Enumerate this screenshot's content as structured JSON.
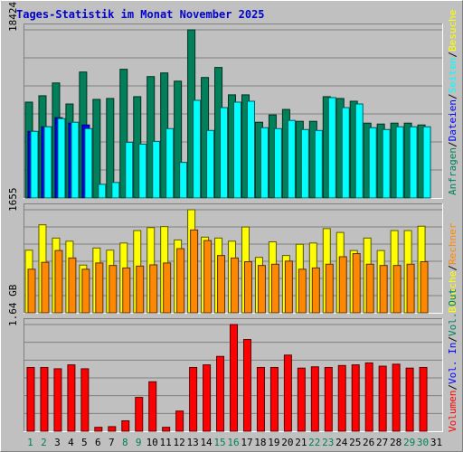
{
  "chart_data": [
    {
      "type": "bar",
      "title": "Tages-Statistik im Monat November 2025",
      "ytick": "18424",
      "categories": [
        "1",
        "2",
        "3",
        "4",
        "5",
        "6",
        "7",
        "8",
        "9",
        "10",
        "11",
        "12",
        "13",
        "14",
        "15",
        "16",
        "17",
        "18",
        "19",
        "20",
        "21",
        "22",
        "23",
        "24",
        "25",
        "26",
        "27",
        "28",
        "29",
        "30",
        "31"
      ],
      "series": [
        {
          "name": "Anfragen",
          "values": [
            10500,
            11200,
            12600,
            10300,
            13800,
            10800,
            10900,
            14100,
            11100,
            13300,
            13700,
            12800,
            18424,
            13200,
            14300,
            11300,
            11300,
            8300,
            9100,
            9700,
            8400,
            8400,
            11100,
            10900,
            10600,
            8200,
            8100,
            8200,
            8200,
            8000,
            0
          ]
        },
        {
          "name": "Dateien",
          "values": [
            7300,
            7800,
            8800,
            8200,
            8000,
            0,
            0,
            0,
            0,
            0,
            0,
            0,
            0,
            0,
            0,
            0,
            0,
            0,
            0,
            0,
            0,
            0,
            0,
            0,
            0,
            0,
            0,
            0,
            0,
            0,
            0
          ]
        },
        {
          "name": "Seiten",
          "values": [
            7300,
            7800,
            8700,
            8300,
            7600,
            1500,
            1700,
            6100,
            5900,
            6200,
            7600,
            3900,
            10700,
            7400,
            9900,
            10500,
            10600,
            7700,
            7600,
            8500,
            7500,
            7400,
            11000,
            9900,
            10300,
            7700,
            7500,
            7800,
            7800,
            7800,
            0
          ]
        },
        {
          "name": "Besuche",
          "values": [
            0,
            0,
            0,
            0,
            0,
            0,
            0,
            0,
            0,
            0,
            0,
            0,
            0,
            0,
            0,
            0,
            0,
            0,
            0,
            0,
            0,
            0,
            0,
            0,
            0,
            0,
            0,
            0,
            0,
            0,
            0
          ]
        }
      ],
      "legend": [
        "Anfragen",
        "/",
        "Dateien",
        "/",
        "Seiten",
        "/",
        "Besuche"
      ],
      "colors": {
        "Anfragen": "#00805a",
        "Dateien": "#0000ff",
        "Seiten": "#00ffff",
        "Besuche": "#ffff00"
      }
    },
    {
      "type": "bar",
      "ytick": "1655",
      "categories": [
        "1",
        "2",
        "3",
        "4",
        "5",
        "6",
        "7",
        "8",
        "9",
        "10",
        "11",
        "12",
        "13",
        "14",
        "15",
        "16",
        "17",
        "18",
        "19",
        "20",
        "21",
        "22",
        "23",
        "24",
        "25",
        "26",
        "27",
        "28",
        "29",
        "30",
        "31"
      ],
      "series": [
        {
          "name": "Besuche",
          "values": [
            1005,
            1413,
            1200,
            1150,
            766,
            1040,
            1006,
            1120,
            1320,
            1368,
            1384,
            1170,
            1655,
            1215,
            1200,
            1150,
            1378,
            890,
            1140,
            920,
            1100,
            1120,
            1352,
            1290,
            1000,
            1200,
            1000,
            1320,
            1320,
            1390,
            0
          ]
        },
        {
          "name": "Rechner",
          "values": [
            700,
            810,
            1000,
            880,
            700,
            800,
            760,
            720,
            750,
            770,
            800,
            1030,
            1330,
            1160,
            920,
            880,
            820,
            760,
            780,
            830,
            700,
            720,
            780,
            900,
            950,
            780,
            760,
            760,
            780,
            820,
            0
          ]
        }
      ],
      "legend": [
        "Besuche",
        "/",
        "Rechner"
      ],
      "colors": {
        "Besuche": "#ffff00",
        "Rechner": "#ff8800"
      }
    },
    {
      "type": "bar",
      "ytick": "1.64 GB",
      "categories": [
        "1",
        "2",
        "3",
        "4",
        "5",
        "6",
        "7",
        "8",
        "9",
        "10",
        "11",
        "12",
        "13",
        "14",
        "15",
        "16",
        "17",
        "18",
        "19",
        "20",
        "21",
        "22",
        "23",
        "24",
        "25",
        "26",
        "27",
        "28",
        "29",
        "30",
        "31"
      ],
      "series": [
        {
          "name": "Volumen",
          "values": [
            0.98,
            0.98,
            0.96,
            1.02,
            0.96,
            0.06,
            0.07,
            0.16,
            0.52,
            0.76,
            0.06,
            0.31,
            0.98,
            1.02,
            1.15,
            1.64,
            1.41,
            0.98,
            0.98,
            1.17,
            0.97,
            0.99,
            0.98,
            1.01,
            1.02,
            1.05,
            1.0,
            1.03,
            0.97,
            0.98,
            0
          ]
        }
      ],
      "legend": [
        "Volumen",
        "/",
        "Vol. In",
        "/",
        "Vol. Out"
      ],
      "colors": {
        "Volumen": "#ff0000",
        "Vol. In": "#0000ff",
        "Vol. Out": "#00805a"
      }
    }
  ],
  "day_label_colors": [
    "#00805a",
    "#00805a",
    "#000000",
    "#000000",
    "#000000",
    "#000000",
    "#000000",
    "#00805a",
    "#00805a",
    "#000000",
    "#000000",
    "#000000",
    "#000000",
    "#000000",
    "#00805a",
    "#00805a",
    "#000000",
    "#000000",
    "#000000",
    "#000000",
    "#000000",
    "#00805a",
    "#00805a",
    "#000000",
    "#000000",
    "#000000",
    "#000000",
    "#000000",
    "#00805a",
    "#00805a",
    "#000000"
  ]
}
